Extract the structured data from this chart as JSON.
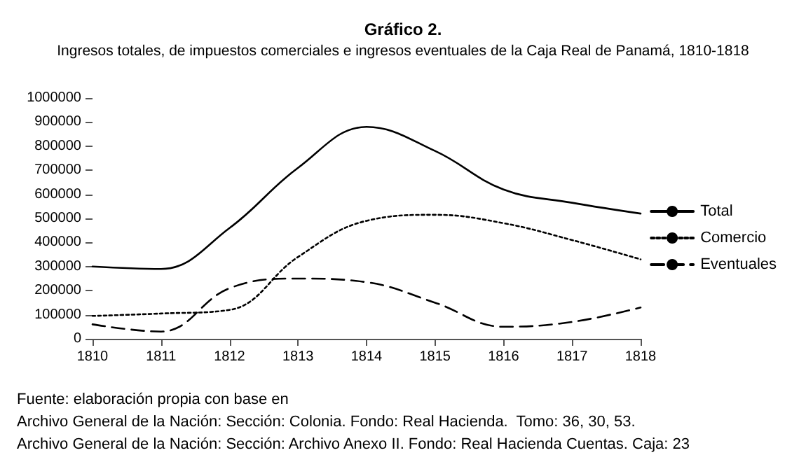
{
  "chart_data": {
    "type": "line",
    "title": "Gráfico 2.",
    "subtitle": "Ingresos totales, de impuestos comerciales e ingresos eventuales de la Caja Real de Panamá, 1810-1818",
    "x": [
      1810,
      1811,
      1812,
      1813,
      1814,
      1815,
      1816,
      1817,
      1818
    ],
    "series": [
      {
        "name": "Total",
        "color": "#000000",
        "line_style": "solid",
        "values": [
          300000,
          290000,
          460000,
          710000,
          880000,
          780000,
          620000,
          565000,
          520000
        ]
      },
      {
        "name": "Comercio",
        "color": "#000000",
        "line_style": "dotted",
        "values": [
          95000,
          105000,
          120000,
          340000,
          490000,
          515000,
          480000,
          410000,
          330000
        ]
      },
      {
        "name": "Eventuales",
        "color": "#000000",
        "line_style": "dashed",
        "values": [
          60000,
          30000,
          210000,
          250000,
          235000,
          150000,
          50000,
          70000,
          130000
        ]
      }
    ],
    "xlim": [
      1810,
      1818
    ],
    "xticks": [
      1810,
      1811,
      1812,
      1813,
      1814,
      1815,
      1816,
      1817,
      1818
    ],
    "ylim": [
      0,
      1000000
    ],
    "yticks": [
      0,
      100000,
      200000,
      300000,
      400000,
      500000,
      600000,
      700000,
      800000,
      900000,
      1000000
    ],
    "grid": false,
    "legend": "right",
    "marker": "none",
    "annotations": [
      "Fuente: elaboración propia con base en",
      "Archivo General de la Nación: Sección: Colonia. Fondo: Real Hacienda.  Tomo: 36, 30, 53.",
      "Archivo General de la Nación: Sección: Archivo Anexo II. Fondo: Real Hacienda Cuentas. Caja: 23"
    ]
  }
}
